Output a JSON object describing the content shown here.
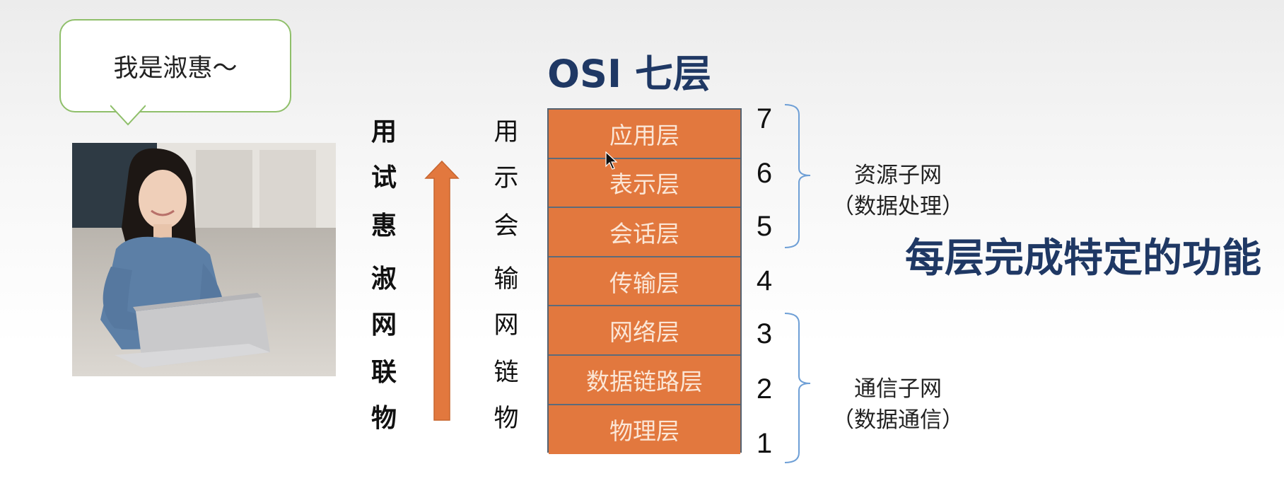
{
  "bubble": {
    "text": "我是淑惠～"
  },
  "title": "OSI  七层",
  "mnemonic": [
    "用",
    "试",
    "惠",
    "淑",
    "网",
    "联",
    "物"
  ],
  "abbrev": [
    "用",
    "示",
    "会",
    "输",
    "网",
    "链",
    "物"
  ],
  "layers": [
    "应用层",
    "表示层",
    "会话层",
    "传输层",
    "网络层",
    "数据链路层",
    "物理层"
  ],
  "numbers": [
    "7",
    "6",
    "5",
    "4",
    "3",
    "2",
    "1"
  ],
  "groups": {
    "resource": {
      "name": "资源子网",
      "desc": "（数据处理）"
    },
    "communication": {
      "name": "通信子网",
      "desc": "（数据通信）"
    }
  },
  "summary": "每层完成特定的功能",
  "colors": {
    "layer_fill": "#e2783e",
    "title": "#1f3864",
    "arrow": "#e2783e",
    "brace": "#6e9fd6",
    "bubble_border": "#8fbf6a"
  }
}
